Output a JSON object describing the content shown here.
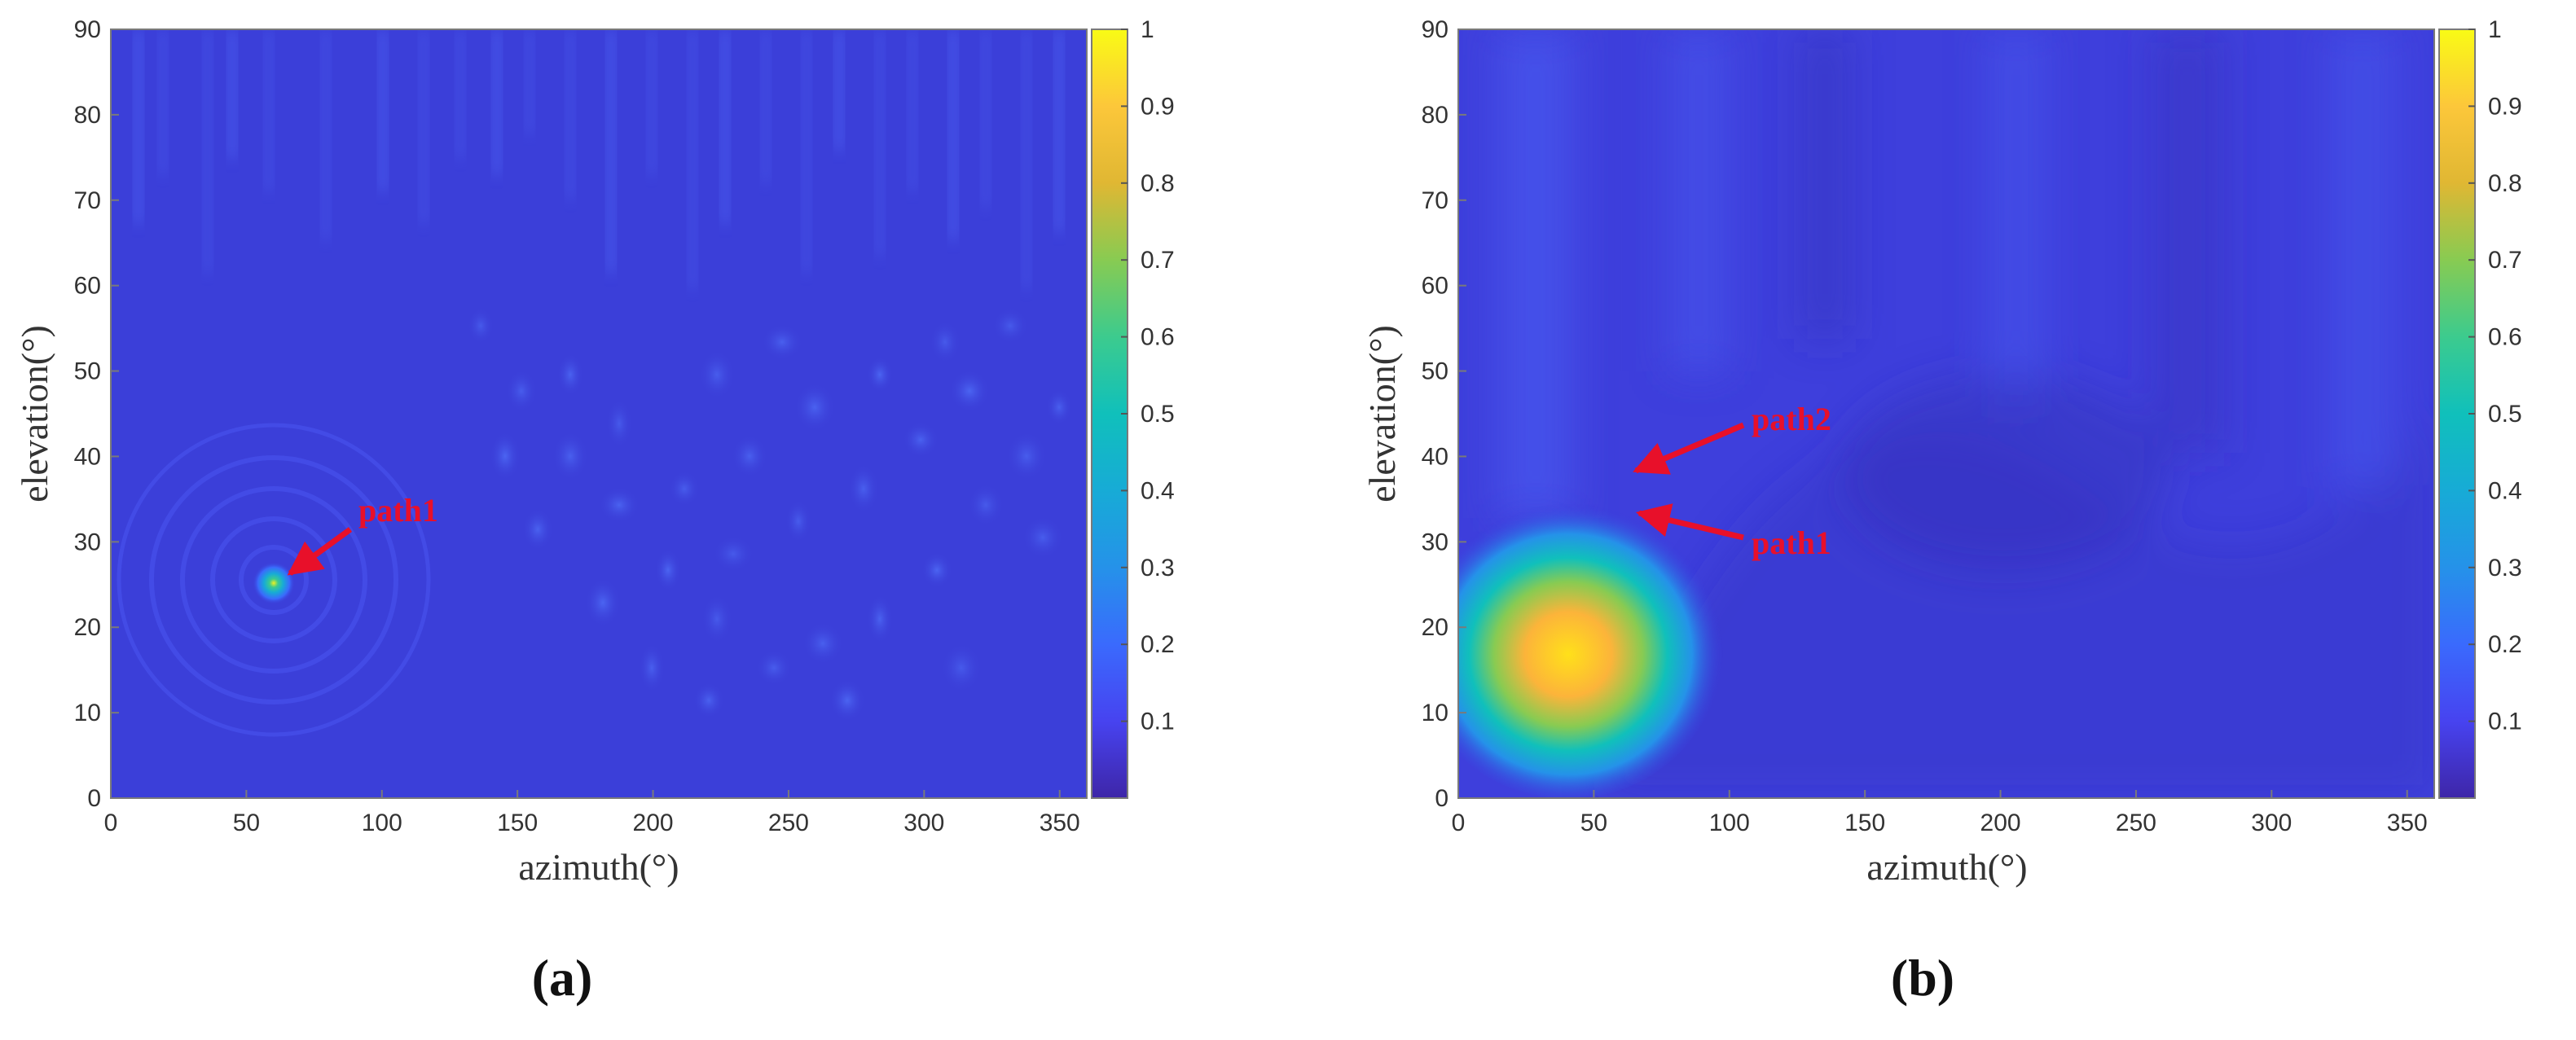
{
  "figure": {
    "panels": [
      "(a)",
      "(b)"
    ]
  },
  "chart_data": [
    {
      "type": "heatmap",
      "panel_label": "a",
      "xlabel": "azimuth(°)",
      "ylabel": "elevation(°)",
      "xlim": [
        0,
        360
      ],
      "ylim": [
        0,
        90
      ],
      "xticks": [
        0,
        50,
        100,
        150,
        200,
        250,
        300,
        350
      ],
      "yticks": [
        0,
        10,
        20,
        30,
        40,
        50,
        60,
        70,
        80,
        90
      ],
      "colorbar": {
        "range": [
          0,
          1
        ],
        "ticks": [
          0.1,
          0.2,
          0.3,
          0.4,
          0.5,
          0.6,
          0.7,
          0.8,
          0.9,
          1
        ],
        "colormap": "parula"
      },
      "peaks": [
        {
          "azimuth": 60,
          "elevation": 25,
          "value": 0.6
        }
      ],
      "annotations": [
        {
          "text": "path1",
          "azimuth": 60,
          "elevation": 25,
          "color": "#e8102a"
        }
      ]
    },
    {
      "type": "heatmap",
      "panel_label": "b",
      "xlabel": "azimuth(°)",
      "ylabel": "elevation(°)",
      "xlim": [
        0,
        360
      ],
      "ylim": [
        0,
        90
      ],
      "xticks": [
        0,
        50,
        100,
        150,
        200,
        250,
        300,
        350
      ],
      "yticks": [
        0,
        10,
        20,
        30,
        40,
        50,
        60,
        70,
        80,
        90
      ],
      "colorbar": {
        "range": [
          0,
          1
        ],
        "ticks": [
          0.1,
          0.2,
          0.3,
          0.4,
          0.5,
          0.6,
          0.7,
          0.8,
          0.9,
          1
        ],
        "colormap": "parula"
      },
      "peaks": [
        {
          "azimuth": 60,
          "elevation": 20,
          "value": 0.9
        }
      ],
      "annotations": [
        {
          "text": "path2",
          "azimuth": 60,
          "elevation": 24,
          "color": "#e8102a"
        },
        {
          "text": "path1",
          "azimuth": 65,
          "elevation": 18,
          "color": "#e8102a"
        }
      ]
    }
  ]
}
